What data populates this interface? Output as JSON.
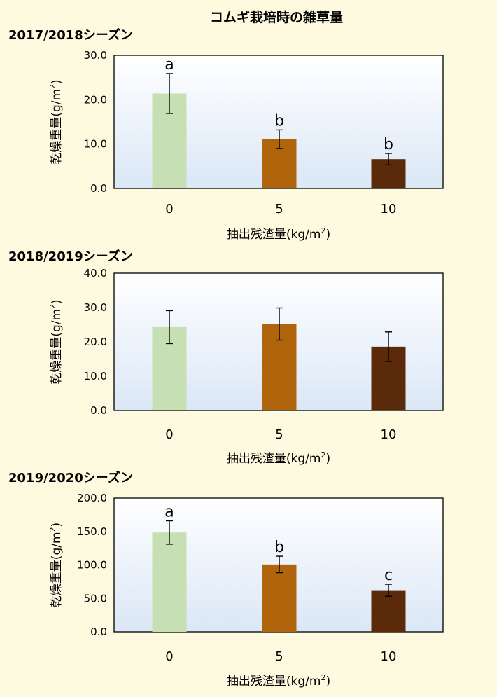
{
  "figure_title": "コムギ栽培時の雑草量",
  "chart_data": [
    {
      "type": "bar",
      "title": "2017/2018シーズン",
      "xlabel_main": "抽出残渣量(kg/m",
      "xlabel_sup": "2",
      "xlabel_end": ")",
      "ylabel_main": "乾燥重量(g/m",
      "ylabel_sup": "2",
      "ylabel_end": ")",
      "categories": [
        "0",
        "5",
        "10"
      ],
      "values": [
        21.4,
        11.1,
        6.6
      ],
      "errors": [
        4.5,
        2.1,
        1.3
      ],
      "significance": [
        "a",
        "b",
        "b"
      ],
      "ylim": [
        0,
        30
      ],
      "yticks": [
        "0.0",
        "10.0",
        "20.0",
        "30.0"
      ],
      "bar_colors": [
        "#c6e0b4",
        "#b0640c",
        "#5a2a0a"
      ]
    },
    {
      "type": "bar",
      "title": "2018/2019シーズン",
      "xlabel_main": "抽出残渣量(kg/m",
      "xlabel_sup": "2",
      "xlabel_end": ")",
      "ylabel_main": "乾燥重量(g/m",
      "ylabel_sup": "2",
      "ylabel_end": ")",
      "categories": [
        "0",
        "5",
        "10"
      ],
      "values": [
        24.3,
        25.2,
        18.6
      ],
      "errors": [
        4.8,
        4.7,
        4.3
      ],
      "significance": [
        "",
        "",
        ""
      ],
      "ylim": [
        0,
        40
      ],
      "yticks": [
        "0.0",
        "10.0",
        "20.0",
        "30.0",
        "40.0"
      ],
      "bar_colors": [
        "#c6e0b4",
        "#b0640c",
        "#5a2a0a"
      ]
    },
    {
      "type": "bar",
      "title": "2019/2020シーズン",
      "xlabel_main": "抽出残渣量(kg/m",
      "xlabel_sup": "2",
      "xlabel_end": ")",
      "ylabel_main": "乾燥重量(g/m",
      "ylabel_sup": "2",
      "ylabel_end": ")",
      "categories": [
        "0",
        "5",
        "10"
      ],
      "values": [
        148.5,
        100.7,
        62.2
      ],
      "errors": [
        17.5,
        12.3,
        9.0
      ],
      "significance": [
        "a",
        "b",
        "c"
      ],
      "ylim": [
        0,
        200
      ],
      "yticks": [
        "0.0",
        "50.0",
        "100.0",
        "150.0",
        "200.0"
      ],
      "bar_colors": [
        "#c6e0b4",
        "#b0640c",
        "#5a2a0a"
      ]
    }
  ]
}
